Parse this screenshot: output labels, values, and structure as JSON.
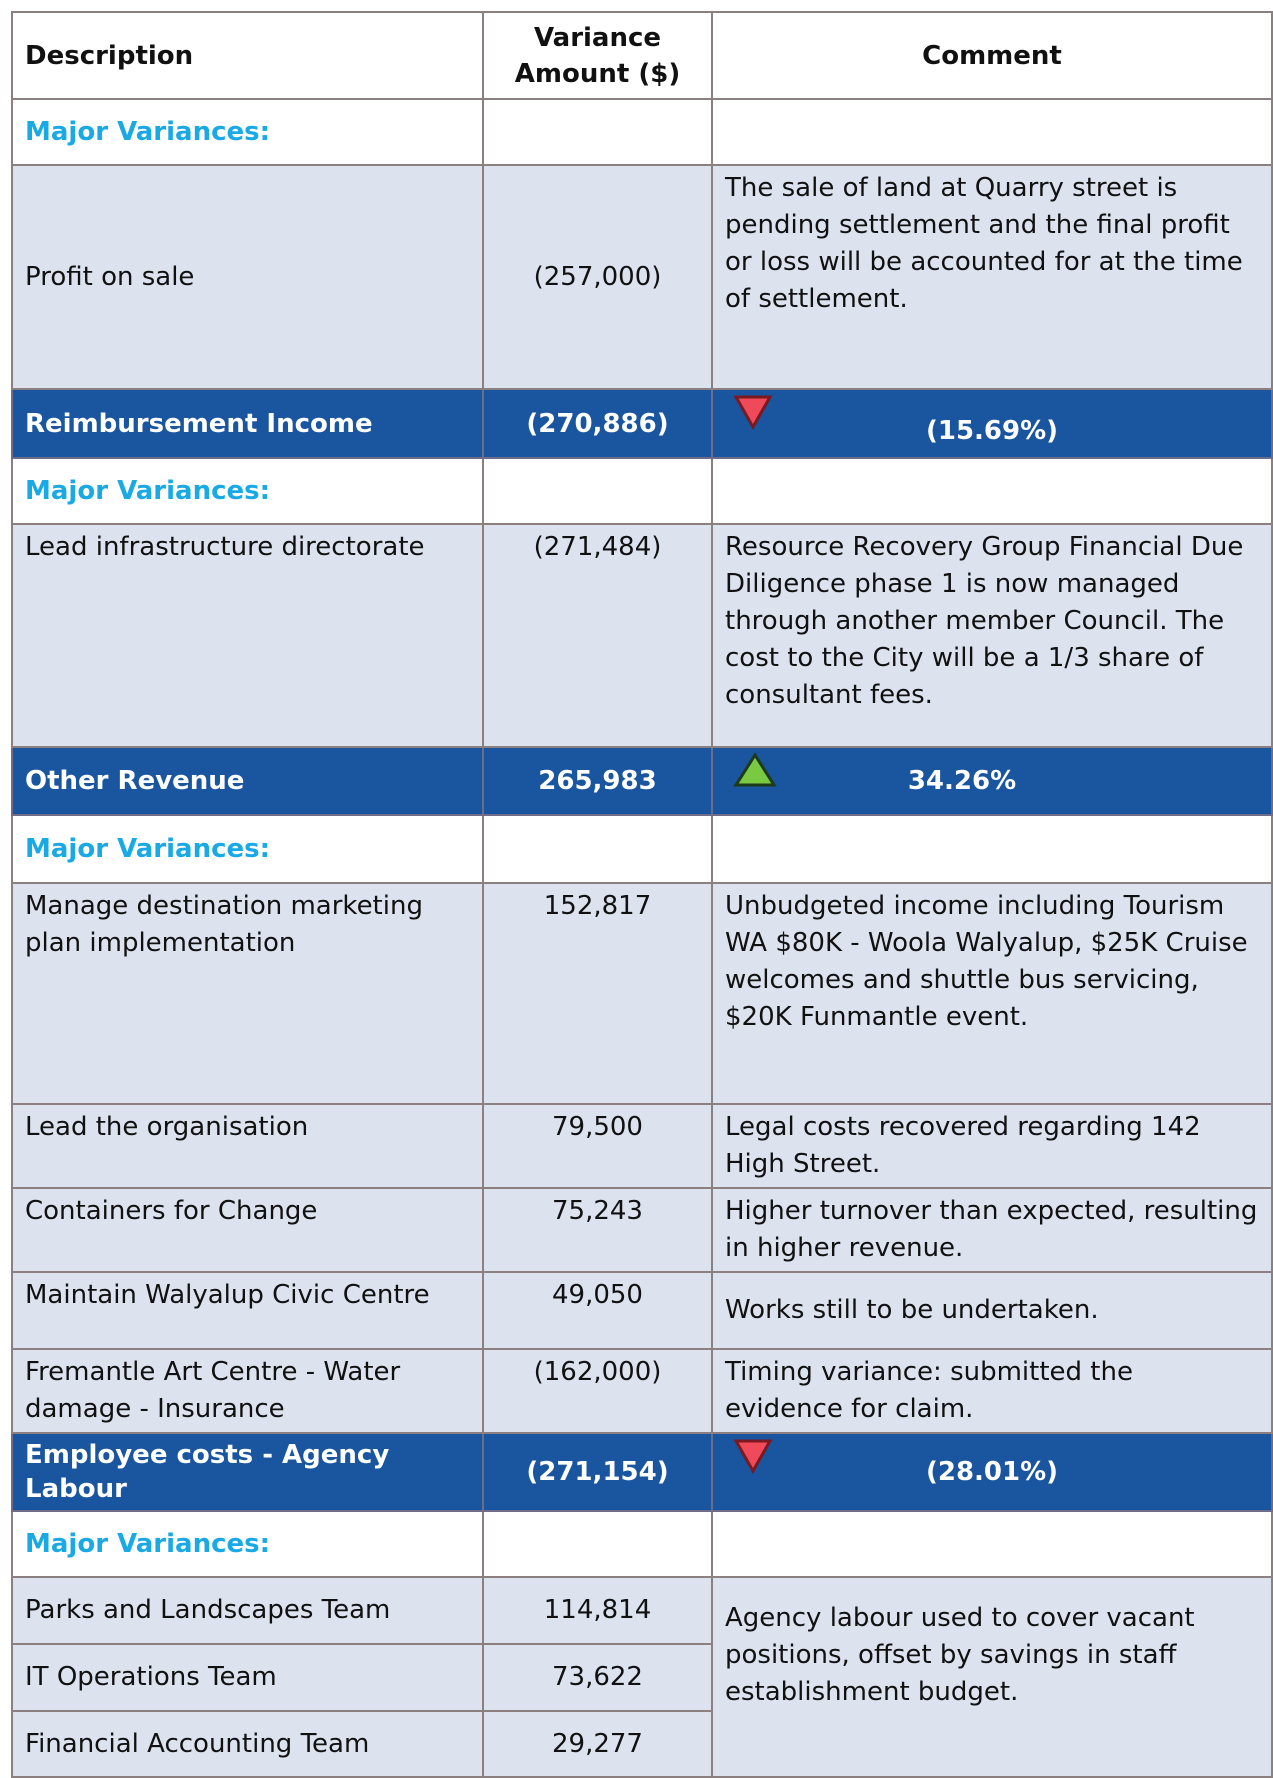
{
  "table": {
    "header": [
      "Description",
      "Variance Amount ($)",
      "Comment"
    ],
    "rows": [
      [
        "Major Variances:"
      ],
      [
        "Profit on sale",
        "(257,000)",
        "The sale of land at Quarry street is pending settlement and the final profit or loss will be accounted for at the time of settlement."
      ],
      [
        "Reimbursement Income",
        "(270,886)",
        "(15.69%)"
      ],
      [
        "Major Variances:"
      ],
      [
        "Lead infrastructure directorate",
        "(271,484)",
        "Resource Recovery Group Financial Due Diligence phase 1 is now managed through another member Council.  The cost to the City will be a 1/3 share of consultant fees."
      ],
      [
        "Other Revenue",
        "265,983",
        "34.26%"
      ],
      [
        "Major Variances:"
      ],
      [
        "Manage destination marketing plan implementation",
        "152,817",
        "Unbudgeted income including Tourism WA $80K - Woola Walyalup, $25K Cruise welcomes and shuttle bus servicing, $20K Funmantle event."
      ],
      [
        "Lead the organisation",
        "79,500",
        "Legal costs recovered regarding 142 High Street."
      ],
      [
        "Containers for Change",
        "75,243",
        "Higher turnover than expected, resulting in higher revenue."
      ],
      [
        "Maintain Walyalup Civic Centre",
        "49,050",
        "Works still to be undertaken."
      ],
      [
        "Fremantle Art Centre - Water damage - Insurance",
        "(162,000)",
        "Timing variance: submitted the evidence for claim."
      ],
      [
        "Employee costs - Agency Labour",
        "(271,154)",
        "(28.01%)"
      ],
      [
        "Major Variances:"
      ],
      [
        "Parks and Landscapes Team",
        "114,814",
        "Agency labour used to cover vacant positions, offset by savings in staff establishment budget."
      ],
      [
        "IT Operations Team",
        "73,622"
      ],
      [
        "Financial Accounting Team",
        "29,277"
      ]
    ]
  }
}
